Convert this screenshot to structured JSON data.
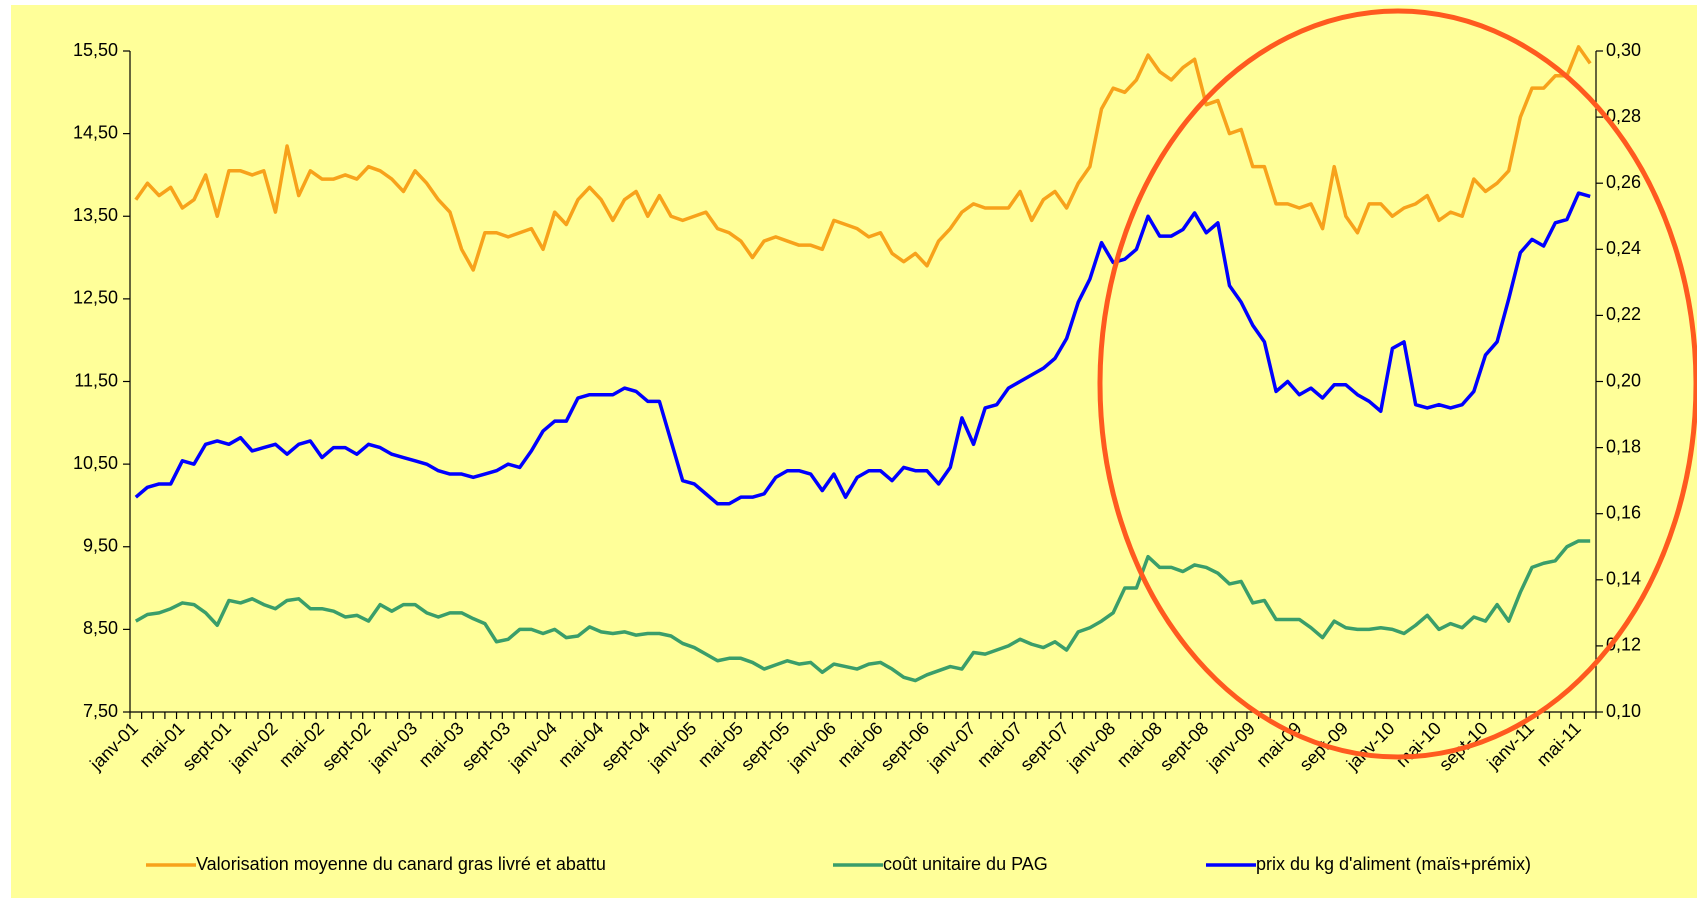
{
  "chart_data": {
    "type": "line",
    "categories": [
      "janv-01",
      null,
      null,
      null,
      "mai-01",
      null,
      null,
      null,
      "sept-01",
      null,
      null,
      null,
      "janv-02",
      null,
      null,
      null,
      "mai-02",
      null,
      null,
      null,
      "sept-02",
      null,
      null,
      null,
      "janv-03",
      null,
      null,
      null,
      "mai-03",
      null,
      null,
      null,
      "sept-03",
      null,
      null,
      null,
      "janv-04",
      null,
      null,
      null,
      "mai-04",
      null,
      null,
      null,
      "sept-04",
      null,
      null,
      null,
      "janv-05",
      null,
      null,
      null,
      "mai-05",
      null,
      null,
      null,
      "sept-05",
      null,
      null,
      null,
      "janv-06",
      null,
      null,
      null,
      "mai-06",
      null,
      null,
      null,
      "sept-06",
      null,
      null,
      null,
      "janv-07",
      null,
      null,
      null,
      "mai-07",
      null,
      null,
      null,
      "sept-07",
      null,
      null,
      null,
      "janv-08",
      null,
      null,
      null,
      "mai-08",
      null,
      null,
      null,
      "sept-08",
      null,
      null,
      null,
      "janv-09",
      null,
      null,
      null,
      "mai-09",
      null,
      null,
      null,
      "sept-09",
      null,
      null,
      null,
      "janv-10",
      null,
      null,
      null,
      "mai-10",
      null,
      null,
      null,
      "sept-10",
      null,
      null,
      null,
      "janv-11",
      null,
      null,
      null,
      "mai-11",
      null
    ],
    "ylim": [
      7.5,
      15.5
    ],
    "yticks": [
      {
        "value": 7.5,
        "label": "7,50"
      },
      {
        "value": 8.5,
        "label": "8,50"
      },
      {
        "value": 9.5,
        "label": "9,50"
      },
      {
        "value": 10.5,
        "label": "10,50"
      },
      {
        "value": 11.5,
        "label": "11,50"
      },
      {
        "value": 12.5,
        "label": "12,50"
      },
      {
        "value": 13.5,
        "label": "13,50"
      },
      {
        "value": 14.5,
        "label": "14,50"
      },
      {
        "value": 15.5,
        "label": "15,50"
      }
    ],
    "y2lim": [
      0.1,
      0.3
    ],
    "y2ticks": [
      {
        "value": 0.1,
        "label": "0,10"
      },
      {
        "value": 0.12,
        "label": "0,12"
      },
      {
        "value": 0.14,
        "label": "0,14"
      },
      {
        "value": 0.16,
        "label": "0,16"
      },
      {
        "value": 0.18,
        "label": "0,18"
      },
      {
        "value": 0.2,
        "label": "0,20"
      },
      {
        "value": 0.22,
        "label": "0,22"
      },
      {
        "value": 0.24,
        "label": "0,24"
      },
      {
        "value": 0.26,
        "label": "0,26"
      },
      {
        "value": 0.28,
        "label": "0,28"
      },
      {
        "value": 0.3,
        "label": "0,30"
      }
    ],
    "grid": false,
    "legend": "bottom",
    "series": [
      {
        "name": "Valorisation moyenne du canard gras livré et abattu",
        "color": "#F7A21B",
        "values": [
          13.7,
          13.9,
          13.75,
          13.85,
          13.6,
          13.7,
          14.0,
          13.5,
          14.05,
          14.05,
          14.0,
          14.05,
          13.55,
          14.35,
          13.75,
          14.05,
          13.95,
          13.95,
          14.0,
          13.95,
          14.1,
          14.05,
          13.95,
          13.8,
          14.05,
          13.9,
          13.7,
          13.55,
          13.1,
          12.85,
          13.3,
          13.3,
          13.25,
          13.3,
          13.35,
          13.1,
          13.55,
          13.4,
          13.7,
          13.85,
          13.7,
          13.45,
          13.7,
          13.8,
          13.5,
          13.75,
          13.5,
          13.45,
          13.5,
          13.55,
          13.35,
          13.3,
          13.2,
          13.0,
          13.2,
          13.25,
          13.2,
          13.15,
          13.15,
          13.1,
          13.45,
          13.4,
          13.35,
          13.25,
          13.3,
          13.05,
          12.95,
          13.05,
          12.9,
          13.2,
          13.35,
          13.55,
          13.65,
          13.6,
          13.6,
          13.6,
          13.8,
          13.45,
          13.7,
          13.8,
          13.6,
          13.9,
          14.1,
          14.8,
          15.05,
          15.0,
          15.15,
          15.45,
          15.25,
          15.15,
          15.3,
          15.4,
          14.85,
          14.9,
          14.5,
          14.55,
          14.1,
          14.1,
          13.65,
          13.65,
          13.6,
          13.65,
          13.35,
          14.1,
          13.5,
          13.3,
          13.65,
          13.65,
          13.5,
          13.6,
          13.65,
          13.75,
          13.45,
          13.55,
          13.5,
          13.95,
          13.8,
          13.9,
          14.05,
          14.7,
          15.05,
          15.05,
          15.2,
          15.2,
          15.55,
          15.35
        ]
      },
      {
        "name": "coût unitaire du PAG",
        "color": "#3A9E6A",
        "values": [
          8.6,
          8.68,
          8.7,
          8.75,
          8.82,
          8.8,
          8.7,
          8.55,
          8.85,
          8.82,
          8.87,
          8.8,
          8.75,
          8.85,
          8.87,
          8.75,
          8.75,
          8.72,
          8.65,
          8.67,
          8.6,
          8.8,
          8.72,
          8.8,
          8.8,
          8.7,
          8.65,
          8.7,
          8.7,
          8.63,
          8.57,
          8.35,
          8.38,
          8.5,
          8.5,
          8.45,
          8.5,
          8.4,
          8.42,
          8.53,
          8.47,
          8.45,
          8.47,
          8.43,
          8.45,
          8.45,
          8.42,
          8.33,
          8.28,
          8.2,
          8.12,
          8.15,
          8.15,
          8.1,
          8.02,
          8.07,
          8.12,
          8.08,
          8.1,
          7.98,
          8.08,
          8.05,
          8.02,
          8.08,
          8.1,
          8.02,
          7.92,
          7.88,
          7.95,
          8.0,
          8.05,
          8.02,
          8.22,
          8.2,
          8.25,
          8.3,
          8.38,
          8.32,
          8.28,
          8.35,
          8.25,
          8.47,
          8.52,
          8.6,
          8.7,
          9.0,
          9.0,
          9.38,
          9.25,
          9.25,
          9.2,
          9.28,
          9.25,
          9.18,
          9.05,
          9.08,
          8.82,
          8.85,
          8.62,
          8.62,
          8.62,
          8.52,
          8.4,
          8.6,
          8.52,
          8.5,
          8.5,
          8.52,
          8.5,
          8.45,
          8.55,
          8.67,
          8.5,
          8.57,
          8.52,
          8.65,
          8.6,
          8.8,
          8.6,
          8.95,
          9.25,
          9.3,
          9.33,
          9.5,
          9.57,
          9.57
        ]
      },
      {
        "name": "prix du kg d'aliment (maïs+prémix)",
        "color": "#0000FF",
        "axis": "y2",
        "values": [
          0.165,
          0.168,
          0.169,
          0.169,
          0.176,
          0.175,
          0.181,
          0.182,
          0.181,
          0.183,
          0.179,
          0.18,
          0.181,
          0.178,
          0.181,
          0.182,
          0.177,
          0.18,
          0.18,
          0.178,
          0.181,
          0.18,
          0.178,
          0.177,
          0.176,
          0.175,
          0.173,
          0.172,
          0.172,
          0.171,
          0.172,
          0.173,
          0.175,
          0.174,
          0.179,
          0.185,
          0.188,
          0.188,
          0.195,
          0.196,
          0.196,
          0.196,
          0.198,
          0.197,
          0.194,
          0.194,
          0.182,
          0.17,
          0.169,
          0.166,
          0.163,
          0.163,
          0.165,
          0.165,
          0.166,
          0.171,
          0.173,
          0.173,
          0.172,
          0.167,
          0.172,
          0.165,
          0.171,
          0.173,
          0.173,
          0.17,
          0.174,
          0.173,
          0.173,
          0.169,
          0.174,
          0.189,
          0.181,
          0.192,
          0.193,
          0.198,
          0.2,
          0.202,
          0.204,
          0.207,
          0.213,
          0.224,
          0.231,
          0.242,
          0.236,
          0.237,
          0.24,
          0.25,
          0.244,
          0.244,
          0.246,
          0.251,
          0.245,
          0.248,
          0.229,
          0.224,
          0.217,
          0.212,
          0.197,
          0.2,
          0.196,
          0.198,
          0.195,
          0.199,
          0.199,
          0.196,
          0.194,
          0.191,
          0.21,
          0.212,
          0.193,
          0.192,
          0.193,
          0.192,
          0.193,
          0.197,
          0.208,
          0.212,
          0.225,
          0.239,
          0.243,
          0.241,
          0.248,
          0.249,
          0.257,
          0.256
        ]
      }
    ]
  }
}
